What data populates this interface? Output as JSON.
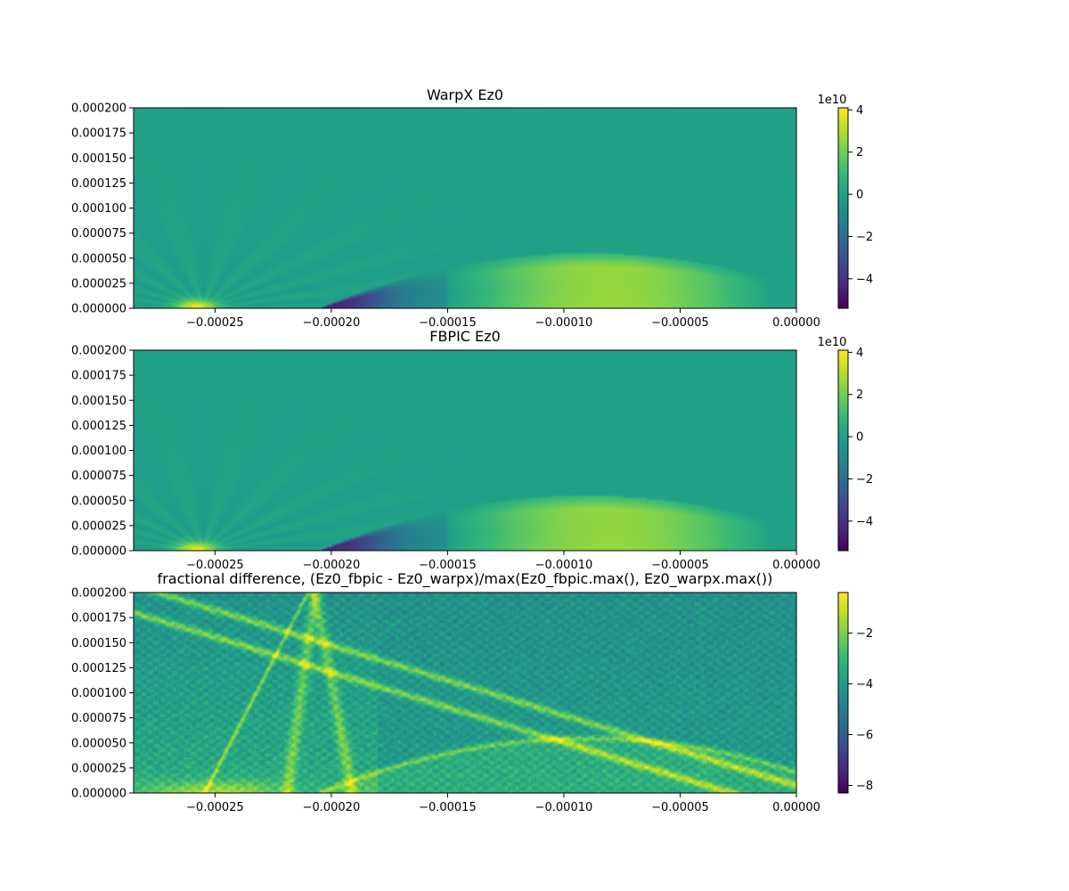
{
  "colors": {
    "viridis_stops": [
      "#440154",
      "#482878",
      "#3e4989",
      "#31688e",
      "#26828e",
      "#1f9e89",
      "#35b779",
      "#6ece58",
      "#b5de2b",
      "#fde725"
    ],
    "axes_edge": "#000000",
    "background": "#ffffff"
  },
  "chart_data": [
    {
      "type": "heatmap",
      "title": "WarpX Ez0",
      "xlabel": "",
      "ylabel": "",
      "xlim": [
        -0.000285,
        0.0
      ],
      "ylim": [
        0.0,
        0.0002
      ],
      "x_ticks": [
        -0.00025,
        -0.0002,
        -0.00015,
        -0.0001,
        -5e-05,
        0.0
      ],
      "x_tick_labels": [
        "−0.00025",
        "−0.00020",
        "−0.00015",
        "−0.00010",
        "−0.00005",
        "0.00000"
      ],
      "y_ticks": [
        0.0,
        2.5e-05,
        5e-05,
        7.5e-05,
        0.0001,
        0.000125,
        0.00015,
        0.000175,
        0.0002
      ],
      "y_tick_labels": [
        "0.000000",
        "0.000025",
        "0.000050",
        "0.000075",
        "0.000100",
        "0.000125",
        "0.000150",
        "0.000175",
        "0.000200"
      ],
      "colormap": "viridis",
      "colorbar": {
        "vmin": -5.4,
        "vmax": 4.1,
        "ticks": [
          4,
          2,
          0,
          -2,
          -4
        ],
        "tick_labels": [
          "4",
          "2",
          "0",
          "−2",
          "−4"
        ],
        "offset_label": "1e10"
      },
      "field": "wake"
    },
    {
      "type": "heatmap",
      "title": "FBPIC Ez0",
      "xlabel": "",
      "ylabel": "",
      "xlim": [
        -0.000285,
        0.0
      ],
      "ylim": [
        0.0,
        0.0002
      ],
      "x_ticks": [
        -0.00025,
        -0.0002,
        -0.00015,
        -0.0001,
        -5e-05,
        0.0
      ],
      "x_tick_labels": [
        "−0.00025",
        "−0.00020",
        "−0.00015",
        "−0.00010",
        "−0.00005",
        "0.00000"
      ],
      "y_ticks": [
        0.0,
        2.5e-05,
        5e-05,
        7.5e-05,
        0.0001,
        0.000125,
        0.00015,
        0.000175,
        0.0002
      ],
      "y_tick_labels": [
        "0.000000",
        "0.000025",
        "0.000050",
        "0.000075",
        "0.000100",
        "0.000125",
        "0.000150",
        "0.000175",
        "0.000200"
      ],
      "colormap": "viridis",
      "colorbar": {
        "vmin": -5.4,
        "vmax": 4.1,
        "ticks": [
          4,
          2,
          0,
          -2,
          -4
        ],
        "tick_labels": [
          "4",
          "2",
          "0",
          "−2",
          "−4"
        ],
        "offset_label": "1e10"
      },
      "field": "wake"
    },
    {
      "type": "heatmap",
      "title": "fractional difference, (Ez0_fbpic - Ez0_warpx)/max(Ez0_fbpic.max(), Ez0_warpx.max())",
      "xlabel": "",
      "ylabel": "",
      "xlim": [
        -0.000285,
        0.0
      ],
      "ylim": [
        0.0,
        0.0002
      ],
      "x_ticks": [
        -0.00025,
        -0.0002,
        -0.00015,
        -0.0001,
        -5e-05,
        0.0
      ],
      "x_tick_labels": [
        "−0.00025",
        "−0.00020",
        "−0.00015",
        "−0.00010",
        "−0.00005",
        "0.00000"
      ],
      "y_ticks": [
        0.0,
        2.5e-05,
        5e-05,
        7.5e-05,
        0.0001,
        0.000125,
        0.00015,
        0.000175,
        0.0002
      ],
      "y_tick_labels": [
        "0.000000",
        "0.000025",
        "0.000050",
        "0.000075",
        "0.000100",
        "0.000125",
        "0.000150",
        "0.000175",
        "0.000200"
      ],
      "colormap": "viridis",
      "colorbar": {
        "vmin": -8.3,
        "vmax": -0.4,
        "ticks": [
          -2,
          -4,
          -6,
          -8
        ],
        "tick_labels": [
          "−2",
          "−4",
          "−6",
          "−8"
        ],
        "offset_label": ""
      },
      "field": "difference"
    }
  ]
}
